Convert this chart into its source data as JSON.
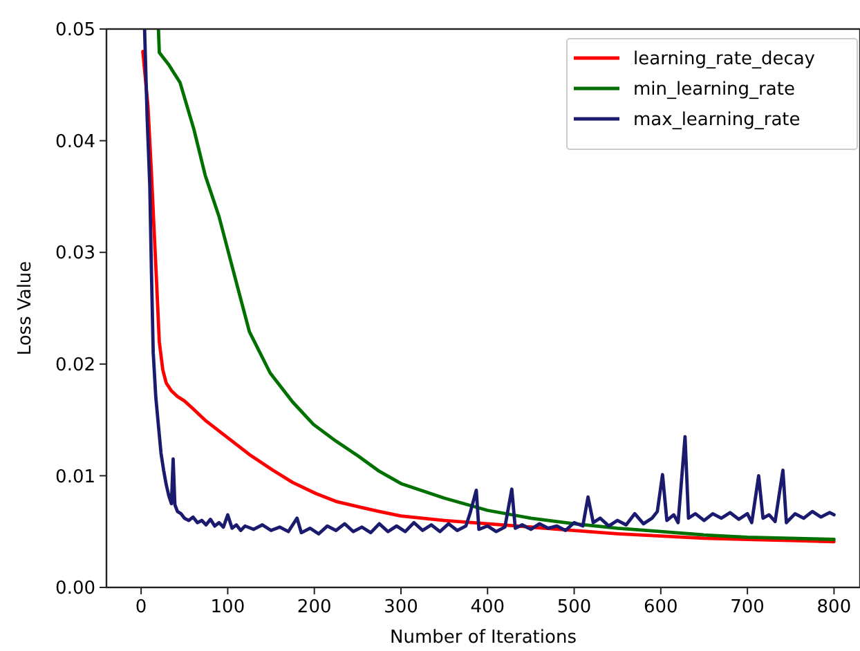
{
  "chart_data": {
    "type": "line",
    "xlabel": "Number of Iterations",
    "ylabel": "Loss Value",
    "xlim": [
      -40,
      830
    ],
    "ylim": [
      0,
      0.05
    ],
    "xticks": [
      0,
      100,
      200,
      300,
      400,
      500,
      600,
      700,
      800
    ],
    "yticks": [
      {
        "value": 0,
        "label": "0.00"
      },
      {
        "value": 0.01,
        "label": "0.01"
      },
      {
        "value": 0.02,
        "label": "0.02"
      },
      {
        "value": 0.03,
        "label": "0.03"
      },
      {
        "value": 0.04,
        "label": "0.04"
      },
      {
        "value": 0.05,
        "label": "0.05"
      }
    ],
    "grid": false,
    "legend": "top right",
    "marker": "none",
    "line_style": "solid",
    "series": [
      {
        "name": "learning_rate_decay",
        "color": "#ff0000",
        "x": [
          2,
          8,
          12,
          15,
          17.6,
          21,
          25,
          29,
          35,
          42,
          50,
          60,
          75,
          100,
          125,
          152,
          175,
          202,
          225,
          252,
          275,
          300,
          350,
          400,
          450,
          500,
          550,
          600,
          650,
          700,
          750,
          800
        ],
        "values": [
          0.048,
          0.043,
          0.037,
          0.032,
          0.0278,
          0.022,
          0.0195,
          0.0183,
          0.0176,
          0.0171,
          0.0167,
          0.016,
          0.0149,
          0.0134,
          0.0119,
          0.0105,
          0.0094,
          0.0084,
          0.0077,
          0.0072,
          0.0068,
          0.0064,
          0.006,
          0.0057,
          0.0054,
          0.0051,
          0.0048,
          0.0046,
          0.0044,
          0.0043,
          0.0042,
          0.0041
        ]
      },
      {
        "name": "min_learning_rate",
        "color": "#007000",
        "x": [
          20,
          21,
          32,
          45,
          61,
          74,
          90,
          111,
          125,
          149,
          175,
          199,
          225,
          250,
          275,
          300,
          350,
          400,
          450,
          500,
          550,
          600,
          650,
          700,
          750,
          800
        ],
        "values": [
          0.05,
          0.0479,
          0.0468,
          0.0452,
          0.041,
          0.0369,
          0.0332,
          0.027,
          0.0229,
          0.0192,
          0.0166,
          0.0146,
          0.0131,
          0.0118,
          0.0104,
          0.0093,
          0.008,
          0.0069,
          0.0062,
          0.0057,
          0.0053,
          0.005,
          0.0047,
          0.0045,
          0.0044,
          0.0043
        ]
      },
      {
        "name": "max_learning_rate",
        "color": "#1a1a6e",
        "x": [
          4,
          7,
          10,
          12,
          14,
          17,
          20,
          23,
          26,
          29,
          32,
          35,
          37,
          39,
          42,
          46,
          50,
          55,
          60,
          65,
          70,
          75,
          80,
          85,
          90,
          95,
          100,
          105,
          110,
          115,
          120,
          130,
          140,
          150,
          160,
          170,
          180,
          185,
          195,
          205,
          215,
          225,
          235,
          245,
          255,
          265,
          275,
          285,
          295,
          305,
          315,
          325,
          335,
          345,
          355,
          365,
          375,
          380,
          387,
          390,
          400,
          410,
          420,
          428,
          432,
          440,
          450,
          460,
          470,
          480,
          490,
          500,
          510,
          516,
          522,
          530,
          540,
          550,
          560,
          570,
          580,
          590,
          596,
          602,
          607,
          615,
          620,
          628,
          632,
          640,
          650,
          660,
          670,
          680,
          690,
          700,
          705,
          713,
          718,
          725,
          732,
          741,
          745,
          755,
          765,
          775,
          785,
          795,
          800
        ],
        "values": [
          0.05,
          0.042,
          0.036,
          0.028,
          0.021,
          0.017,
          0.0145,
          0.012,
          0.0105,
          0.0092,
          0.0082,
          0.0075,
          0.0115,
          0.0074,
          0.0068,
          0.0066,
          0.0062,
          0.006,
          0.0063,
          0.0058,
          0.006,
          0.0056,
          0.0061,
          0.0055,
          0.0058,
          0.0054,
          0.0065,
          0.0053,
          0.0056,
          0.0051,
          0.0055,
          0.0052,
          0.0056,
          0.0051,
          0.0054,
          0.005,
          0.0062,
          0.0049,
          0.0053,
          0.0048,
          0.0055,
          0.0051,
          0.0057,
          0.005,
          0.0054,
          0.0049,
          0.0057,
          0.005,
          0.0055,
          0.005,
          0.0058,
          0.0051,
          0.0056,
          0.005,
          0.0057,
          0.0051,
          0.0055,
          0.0067,
          0.0087,
          0.0052,
          0.0055,
          0.005,
          0.0054,
          0.0088,
          0.0053,
          0.0056,
          0.0052,
          0.0057,
          0.0053,
          0.0055,
          0.0051,
          0.0058,
          0.0055,
          0.0081,
          0.0058,
          0.0062,
          0.0055,
          0.006,
          0.0056,
          0.0066,
          0.0057,
          0.0062,
          0.0068,
          0.0101,
          0.006,
          0.0065,
          0.0058,
          0.0135,
          0.0062,
          0.0066,
          0.006,
          0.0066,
          0.0062,
          0.0067,
          0.0061,
          0.0066,
          0.0058,
          0.01,
          0.0062,
          0.0065,
          0.0059,
          0.0105,
          0.0058,
          0.0066,
          0.0062,
          0.0068,
          0.0063,
          0.0067,
          0.0065
        ]
      }
    ]
  }
}
